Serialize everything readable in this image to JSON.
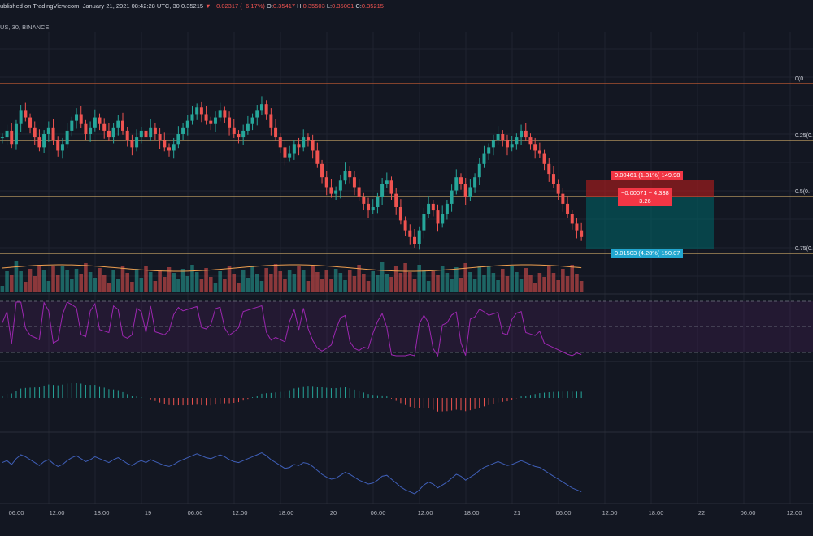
{
  "header": {
    "published": "ublished on TradingView.com, January 21, 2021 08:42:28 UTC",
    "interval_prefix": ", 30",
    "last_price": "0.35215",
    "arrow": "▼",
    "change": "−0.02317 (−6.17%)",
    "o_label": "O:",
    "o_value": "0.35417",
    "h_label": "H:",
    "h_value": "0.35503",
    "l_label": "L:",
    "l_value": "0.35001",
    "c_label": "C:",
    "c_value": "0.35215"
  },
  "symbol_line": "US, 30, BINANCE",
  "fib_levels": [
    {
      "label": "0(0.",
      "color": "#ef6c35"
    },
    {
      "label": "0.25(0.",
      "color": "#f0c674"
    },
    {
      "label": "0.5(0.",
      "color": "#f0c674"
    },
    {
      "label": "0.75(0.",
      "color": "#f0c674"
    }
  ],
  "position_tool": {
    "target_label": "0.00461 (1.31%) 149.98",
    "current_label_line1": "−0.00071 ~ 4.338",
    "current_label_line2": "3.26",
    "stop_label": "0.01503 (4.28%) 150.07",
    "profit_color": "#b71c1c",
    "loss_color": "#006064"
  },
  "time_axis": [
    "06:00",
    "12:00",
    "18:00",
    "19",
    "06:00",
    "12:00",
    "18:00",
    "20",
    "06:00",
    "12:00",
    "18:00",
    "21",
    "06:00",
    "12:00",
    "18:00",
    "22",
    "06:00",
    "12:00"
  ],
  "colors": {
    "up": "#26a69a",
    "down": "#ef5350",
    "rsi": "#9c27b0",
    "ma": "#f0a050",
    "line": "#3f5fb8"
  },
  "chart_data": {
    "type": "candlestick",
    "closes": [
      70,
      72,
      68,
      74,
      78,
      76,
      73,
      70,
      67,
      71,
      73,
      69,
      66,
      68,
      72,
      75,
      77,
      74,
      71,
      73,
      76,
      74,
      72,
      70,
      73,
      75,
      72,
      69,
      67,
      70,
      72,
      70,
      73,
      71,
      69,
      67,
      66,
      68,
      71,
      73,
      75,
      77,
      79,
      77,
      75,
      74,
      76,
      78,
      76,
      73,
      71,
      70,
      72,
      74,
      76,
      78,
      80,
      77,
      73,
      70,
      67,
      64,
      65,
      68,
      67,
      70,
      69,
      66,
      62,
      58,
      55,
      53,
      54,
      57,
      60,
      58,
      55,
      52,
      50,
      48,
      49,
      52,
      56,
      57,
      53,
      49,
      45,
      42,
      40,
      38,
      42,
      47,
      50,
      48,
      44,
      47,
      50,
      54,
      58,
      56,
      52,
      55,
      58,
      62,
      65,
      67,
      69,
      71,
      69,
      67,
      68,
      70,
      72,
      70,
      68,
      66,
      65,
      62,
      59,
      56,
      53,
      50,
      47,
      44,
      42,
      40
    ]
  }
}
